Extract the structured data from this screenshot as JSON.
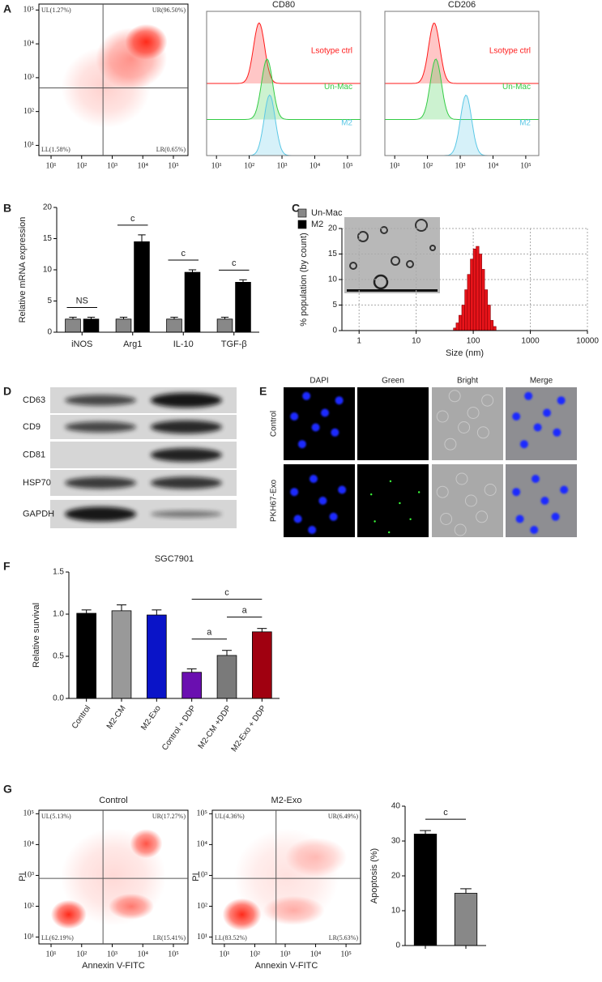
{
  "figure_labels": [
    "A",
    "B",
    "C",
    "D",
    "E",
    "F",
    "G"
  ],
  "western_blot": {
    "bands": [
      "CD63",
      "CD9",
      "CD81",
      "HSP70",
      "GAPDH"
    ]
  },
  "microscopy": {
    "columns": [
      "DAPI",
      "Green",
      "Bright",
      "Merge"
    ],
    "rows": [
      "Control",
      "PKH67-Exo"
    ]
  },
  "chart_data": [
    {
      "type": "quadrant",
      "log": true,
      "color": "#ff2a1a",
      "xlim": [
        4,
        300000
      ],
      "ylim": [
        5,
        150000
      ],
      "xticks": [
        {
          "value": 10,
          "label": "10¹"
        },
        {
          "value": 100,
          "label": "10²"
        },
        {
          "value": 1000,
          "label": "10³"
        },
        {
          "value": 10000,
          "label": "10⁴"
        },
        {
          "value": 100000,
          "label": "10⁵"
        }
      ],
      "yticks": [
        {
          "value": 10,
          "label": "10¹"
        },
        {
          "value": 100,
          "label": "10²"
        },
        {
          "value": 1000,
          "label": "10³"
        },
        {
          "value": 10000,
          "label": "10⁴"
        },
        {
          "value": 100000,
          "label": "10⁵"
        }
      ],
      "gate": {
        "x": 500,
        "y": 500
      },
      "quadrant_labels": {
        "UL": "UL(1.27%)",
        "UR": "UR(96.50%)",
        "LL": "LL(1.58%)",
        "LR": "LR(0.65%)"
      }
    },
    {
      "type": "overlay",
      "title": "CD80",
      "log": true,
      "xlim": [
        5,
        250000
      ],
      "xticks": [
        {
          "value": 10,
          "label": "10¹"
        },
        {
          "value": 100,
          "label": "10²"
        },
        {
          "value": 1000,
          "label": "10³"
        },
        {
          "value": 10000,
          "label": "10⁴"
        },
        {
          "value": 100000,
          "label": "10⁵"
        }
      ],
      "series": [
        {
          "name": "Lsotype ctrl",
          "color": "#ff1a1a",
          "peak": 200
        },
        {
          "name": "Un-Mac",
          "color": "#33cc44",
          "peak": 350
        },
        {
          "name": "M2",
          "color": "#5bc8e6",
          "peak": 420
        }
      ]
    },
    {
      "type": "overlay",
      "title": "CD206",
      "log": true,
      "xlim": [
        5,
        250000
      ],
      "xticks": [
        {
          "value": 10,
          "label": "10¹"
        },
        {
          "value": 100,
          "label": "10²"
        },
        {
          "value": 1000,
          "label": "10³"
        },
        {
          "value": 10000,
          "label": "10⁴"
        },
        {
          "value": 100000,
          "label": "10⁵"
        }
      ],
      "series": [
        {
          "name": "Lsotype ctrl",
          "color": "#ff1a1a",
          "peak": 160
        },
        {
          "name": "Un-Mac",
          "color": "#33cc44",
          "peak": 180
        },
        {
          "name": "M2",
          "color": "#5bc8e6",
          "peak": 1500
        }
      ]
    },
    {
      "type": "bar",
      "ylabel": "Relative mRNA expression",
      "legend": "top-right",
      "categories": [
        "iNOS",
        "Arg1",
        "IL-10",
        "TGF-β"
      ],
      "series": [
        {
          "name": "Un-Mac",
          "color": "#888888",
          "values": [
            2.1,
            2.1,
            2.1,
            2.1
          ],
          "errors": [
            0.3,
            0.3,
            0.3,
            0.3
          ]
        },
        {
          "name": "M2",
          "color": "#000000",
          "values": [
            2.1,
            14.5,
            9.6,
            8.0
          ],
          "errors": [
            0.3,
            1.1,
            0.4,
            0.4
          ]
        }
      ],
      "significance": [
        "NS",
        "c",
        "c",
        "c"
      ],
      "ylim": [
        0,
        20
      ],
      "yticks": [
        0,
        5,
        10,
        15,
        20
      ]
    },
    {
      "type": "histogram",
      "log": true,
      "grid": true,
      "color": "#e8141a",
      "xlabel": "Size (nm)",
      "ylabel": "% population (by count)",
      "bins": [
        45,
        50,
        56,
        63,
        71,
        79,
        89,
        100,
        112,
        126,
        141,
        158,
        178,
        200,
        224,
        251
      ],
      "values": [
        0.5,
        1.5,
        3,
        5,
        8,
        11,
        14,
        16,
        16.5,
        15,
        12,
        8,
        5,
        2,
        0.8
      ],
      "xlim": [
        0.5,
        10000
      ],
      "xticks": [
        1,
        10,
        100,
        1000,
        10000
      ],
      "ylim": [
        0,
        20
      ],
      "yticks": [
        0,
        5,
        10,
        15,
        20
      ]
    },
    {
      "type": "bar",
      "title": "SGC7901",
      "ylabel": "Relative survival",
      "categories": [
        "Control",
        "M2-CM",
        "M2-Exo",
        "Control + DDP",
        "M2-CM +DDP",
        "M2-Exo + DDP"
      ],
      "values": [
        1.01,
        1.04,
        0.99,
        0.31,
        0.51,
        0.79
      ],
      "errors": [
        0.04,
        0.07,
        0.06,
        0.04,
        0.06,
        0.04
      ],
      "colors": [
        "#000000",
        "#999999",
        "#0a14c8",
        "#6a0fb0",
        "#7a7a7a",
        "#a00010"
      ],
      "comparisons": [
        {
          "label": "a",
          "bars": [
            3,
            4
          ]
        },
        {
          "label": "a",
          "bars": [
            4,
            5
          ]
        },
        {
          "label": "c",
          "bars": [
            3,
            5
          ]
        }
      ],
      "ylim": [
        0,
        1.5
      ],
      "yticks": [
        {
          "value": 0,
          "label": "0.0"
        },
        0.5,
        {
          "value": 1,
          "label": "1.0"
        },
        1.5
      ]
    },
    {
      "type": "quadrant",
      "log": true,
      "title": "Control",
      "xlabel": "Annexin V-FITC",
      "ylabel": "PI",
      "color": "#ff2a1a",
      "xlim": [
        4,
        300000
      ],
      "ylim": [
        6,
        130000
      ],
      "xticks": [
        {
          "value": 10,
          "label": "10¹"
        },
        {
          "value": 100,
          "label": "10²"
        },
        {
          "value": 1000,
          "label": "10³"
        },
        {
          "value": 10000,
          "label": "10⁴"
        },
        {
          "value": 100000,
          "label": "10⁵"
        }
      ],
      "yticks": [
        {
          "value": 10,
          "label": "10¹"
        },
        {
          "value": 100,
          "label": "10²"
        },
        {
          "value": 1000,
          "label": "10³"
        },
        {
          "value": 10000,
          "label": "10⁴"
        },
        {
          "value": 100000,
          "label": "10⁵"
        }
      ],
      "gate": {
        "x": 500,
        "y": 800
      },
      "quadrant_labels": {
        "UL": "UL(5.13%)",
        "UR": "UR(17.27%)",
        "LL": "LL(62.19%)",
        "LR": "LR(15.41%)"
      }
    },
    {
      "type": "quadrant",
      "log": true,
      "title": "M2-Exo",
      "xlabel": "Annexin V-FITC",
      "ylabel": "PI",
      "color": "#ff2a1a",
      "xlim": [
        4,
        300000
      ],
      "ylim": [
        6,
        130000
      ],
      "xticks": [
        {
          "value": 10,
          "label": "10¹"
        },
        {
          "value": 100,
          "label": "10²"
        },
        {
          "value": 1000,
          "label": "10³"
        },
        {
          "value": 10000,
          "label": "10⁴"
        },
        {
          "value": 100000,
          "label": "10⁵"
        }
      ],
      "yticks": [
        {
          "value": 10,
          "label": "10¹"
        },
        {
          "value": 100,
          "label": "10²"
        },
        {
          "value": 1000,
          "label": "10³"
        },
        {
          "value": 10000,
          "label": "10⁴"
        },
        {
          "value": 100000,
          "label": "10⁵"
        }
      ],
      "gate": {
        "x": 500,
        "y": 800
      },
      "quadrant_labels": {
        "UL": "UL(4.36%)",
        "UR": "UR(6.49%)",
        "LL": "LL(83.52%)",
        "LR": "LR(5.63%)"
      }
    },
    {
      "type": "bar",
      "ylabel": "Apoptosis (%)",
      "categories": [
        null,
        null
      ],
      "values": [
        32,
        15
      ],
      "errors": [
        1,
        1.3
      ],
      "colors": [
        "#000000",
        "#888888"
      ],
      "comparisons": [
        {
          "label": "c",
          "bars": [
            0,
            1
          ]
        }
      ],
      "ylim": [
        0,
        40
      ],
      "yticks": [
        0,
        10,
        20,
        30,
        40
      ]
    }
  ]
}
